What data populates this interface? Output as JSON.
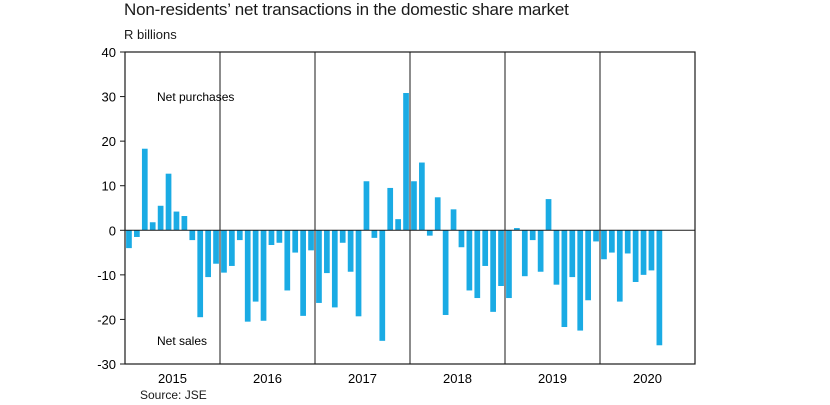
{
  "chart_data": {
    "type": "bar",
    "title": "Non-residents’ net transactions in the domestic share market",
    "ylabel": "R billions",
    "source": "Source: JSE",
    "ylim": [
      -30,
      40
    ],
    "yticks": [
      40,
      30,
      20,
      10,
      0,
      -10,
      -20,
      -30
    ],
    "ytick_labels": [
      "40",
      "30",
      "20",
      "10",
      "0",
      "-10",
      "-20",
      "-30"
    ],
    "frequency": "monthly",
    "start": "2015-01",
    "years": [
      "2015",
      "2016",
      "2017",
      "2018",
      "2019",
      "2020"
    ],
    "annotations": {
      "top": "Net purchases",
      "bottom": "Net sales"
    },
    "bar_color": "#1aabe4",
    "values": [
      -4,
      -1.5,
      18.3,
      1.8,
      5.5,
      12.7,
      4.2,
      3.2,
      -2.2,
      -19.5,
      -10.5,
      -7.5,
      -9.5,
      -8,
      -2.2,
      -20.5,
      -16,
      -20.3,
      -3.3,
      -2.8,
      -13.5,
      -5,
      -19.2,
      -4.5,
      -16.3,
      -9.6,
      -17.3,
      -2.8,
      -9.3,
      -19.3,
      11,
      -1.7,
      -24.8,
      9.5,
      2.5,
      30.8,
      11,
      15.2,
      -1.2,
      7.4,
      -19,
      4.7,
      -3.8,
      -13.5,
      -15.2,
      -8,
      -18.3,
      -12.5,
      -15.2,
      0.5,
      -10.3,
      -2.2,
      -9.3,
      7,
      -12.2,
      -21.7,
      -10.5,
      -22.5,
      -15.7,
      -2.5,
      -6.5,
      -5,
      -16,
      -5.2,
      -11.6,
      -10,
      -9,
      -25.8
    ]
  }
}
